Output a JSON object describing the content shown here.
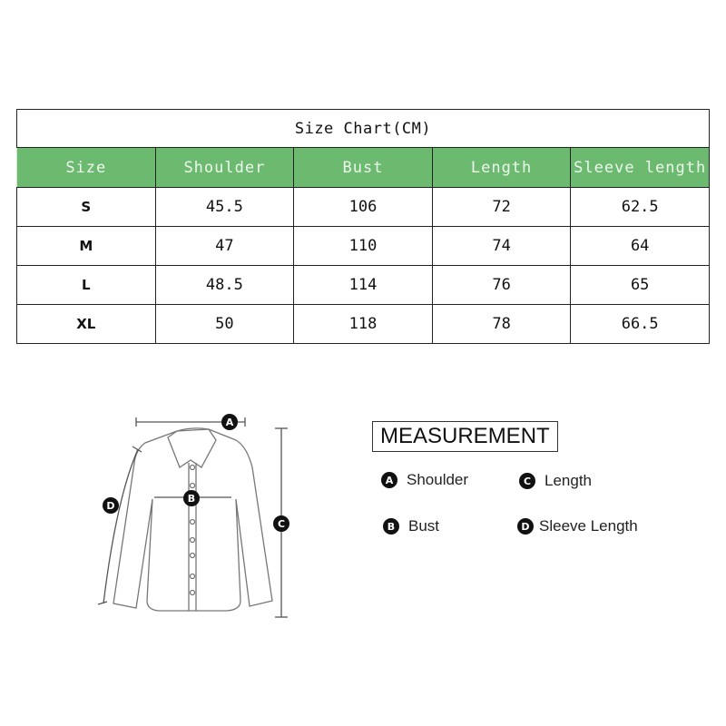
{
  "chart_data": {
    "type": "table",
    "title": "Size Chart(CM)",
    "columns": [
      "Size",
      "Shoulder",
      "Bust",
      "Length",
      "Sleeve length"
    ],
    "rows": [
      [
        "S",
        "45.5",
        "106",
        "72",
        "62.5"
      ],
      [
        "M",
        "47",
        "110",
        "74",
        "64"
      ],
      [
        "L",
        "48.5",
        "114",
        "76",
        "65"
      ],
      [
        "XL",
        "50",
        "118",
        "78",
        "66.5"
      ]
    ],
    "header_color": "#6cba6f"
  },
  "measurement": {
    "title": "MEASUREMENT",
    "items": [
      {
        "key": "A",
        "label": "Shoulder"
      },
      {
        "key": "C",
        "label": "Length"
      },
      {
        "key": "B",
        "label": "Bust"
      },
      {
        "key": "D",
        "label": "Sleeve Length"
      }
    ]
  }
}
